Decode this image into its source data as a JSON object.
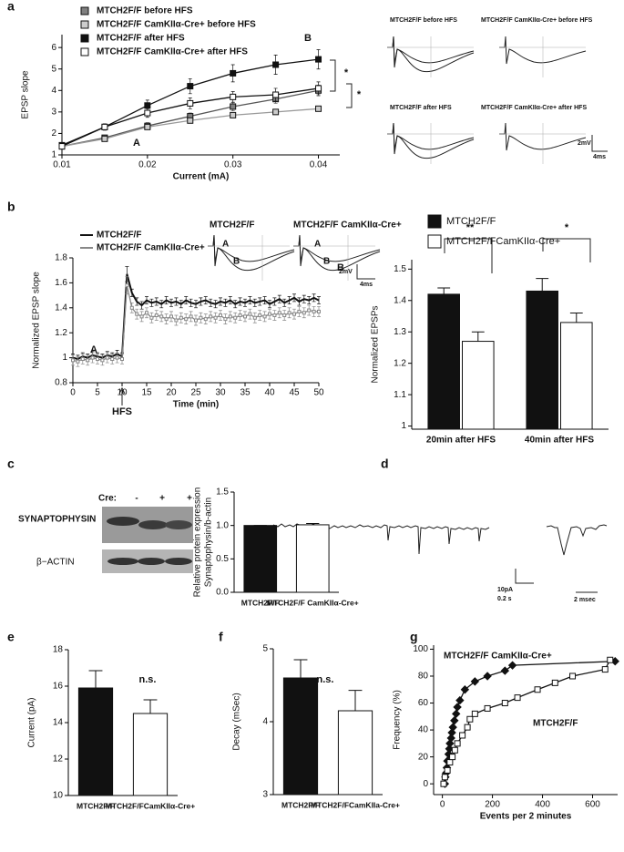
{
  "chart_data": [
    {
      "panel": "a",
      "type": "line",
      "xlabel": "Current (mA)",
      "ylabel": "EPSP slope",
      "x": [
        0.01,
        0.015,
        0.02,
        0.025,
        0.03,
        0.035,
        0.04
      ],
      "xlim": [
        0.01,
        0.0425
      ],
      "xticks": [
        0.01,
        0.02,
        0.03,
        0.04
      ],
      "ylim": [
        1,
        6.6
      ],
      "yticks": [
        1,
        2,
        3,
        4,
        5,
        6
      ],
      "legend": "upper left",
      "series": [
        {
          "name": "MTCH2F/F before HFS",
          "color": "#555555",
          "marker": "square",
          "marker_fill": "#808080",
          "values": [
            1.4,
            1.8,
            2.35,
            2.8,
            3.25,
            3.6,
            4.0
          ],
          "errors": [
            0.05,
            0.1,
            0.15,
            0.15,
            0.2,
            0.2,
            0.25
          ]
        },
        {
          "name": "MTCH2F/F CamKIIα-Cre+ before HFS",
          "color": "#999999",
          "marker": "square",
          "marker_fill": "#cccccc",
          "values": [
            1.4,
            1.75,
            2.3,
            2.6,
            2.85,
            3.0,
            3.15
          ],
          "errors": [
            0.05,
            0.1,
            0.1,
            0.12,
            0.12,
            0.12,
            0.12
          ]
        },
        {
          "name": "MTCH2F/F after HFS",
          "color": "#111111",
          "marker": "square",
          "marker_fill": "#111111",
          "values": [
            1.45,
            2.3,
            3.3,
            4.2,
            4.8,
            5.2,
            5.45
          ],
          "errors": [
            0.05,
            0.15,
            0.25,
            0.35,
            0.4,
            0.45,
            0.45
          ]
        },
        {
          "name": "MTCH2F/F CamKIIα-Cre+ after HFS",
          "color": "#111111",
          "marker": "square",
          "marker_fill": "#ffffff",
          "values": [
            1.4,
            2.3,
            2.95,
            3.4,
            3.7,
            3.8,
            4.1
          ],
          "errors": [
            0.05,
            0.12,
            0.2,
            0.25,
            0.25,
            0.3,
            0.3
          ]
        }
      ],
      "annotations": [
        "A",
        "B",
        "*",
        "*"
      ]
    },
    {
      "panel": "b",
      "type": "line",
      "xlabel": "Time (min)",
      "ylabel": "Normalized EPSP slope",
      "x": [
        0,
        1,
        2,
        3,
        4,
        5,
        6,
        7,
        8,
        9,
        10,
        11,
        12,
        13,
        14,
        15,
        16,
        17,
        18,
        19,
        20,
        21,
        22,
        23,
        24,
        25,
        26,
        27,
        28,
        29,
        30,
        31,
        32,
        33,
        34,
        35,
        36,
        37,
        38,
        39,
        40,
        41,
        42,
        43,
        44,
        45,
        46,
        47,
        48,
        49,
        50
      ],
      "xlim": [
        0,
        50
      ],
      "xticks": [
        0,
        5,
        10,
        15,
        20,
        25,
        30,
        35,
        40,
        45,
        50
      ],
      "ylim": [
        0.8,
        1.8
      ],
      "yticks": [
        0.8,
        1,
        1.2,
        1.4,
        1.6,
        1.8
      ],
      "legend": "upper left",
      "series": [
        {
          "name": "MTCH2F/F",
          "color": "#111111",
          "marker": "none",
          "values": [
            1.0,
            0.99,
            1.01,
            1.0,
            1.02,
            1.01,
            1.0,
            1.02,
            1.01,
            1.03,
            1.01,
            1.67,
            1.52,
            1.45,
            1.42,
            1.46,
            1.44,
            1.45,
            1.43,
            1.46,
            1.44,
            1.45,
            1.43,
            1.46,
            1.44,
            1.43,
            1.45,
            1.46,
            1.44,
            1.43,
            1.45,
            1.44,
            1.46,
            1.43,
            1.45,
            1.44,
            1.46,
            1.44,
            1.45,
            1.46,
            1.43,
            1.45,
            1.47,
            1.44,
            1.46,
            1.48,
            1.45,
            1.47,
            1.46,
            1.48,
            1.46
          ],
          "errors": [
            0.03,
            0.03,
            0.03,
            0.03,
            0.03,
            0.03,
            0.03,
            0.03,
            0.03,
            0.03,
            0.03,
            0.06,
            0.03,
            0.03,
            0.03,
            0.03,
            0.03,
            0.03,
            0.03,
            0.03,
            0.03,
            0.03,
            0.03,
            0.03,
            0.03,
            0.03,
            0.03,
            0.03,
            0.03,
            0.03,
            0.03,
            0.03,
            0.03,
            0.03,
            0.03,
            0.03,
            0.03,
            0.03,
            0.03,
            0.03,
            0.03,
            0.03,
            0.03,
            0.03,
            0.03,
            0.03,
            0.03,
            0.03,
            0.03,
            0.03,
            0.03
          ]
        },
        {
          "name": "MTCH2F/F CamKIIα-Cre+",
          "color": "#888888",
          "marker": "square",
          "marker_fill": "#ffffff",
          "values": [
            0.98,
            0.97,
            0.99,
            0.98,
            1.0,
            0.99,
            0.98,
            1.0,
            0.99,
            1.0,
            0.99,
            1.58,
            1.4,
            1.35,
            1.33,
            1.36,
            1.32,
            1.34,
            1.33,
            1.31,
            1.33,
            1.3,
            1.32,
            1.31,
            1.33,
            1.3,
            1.32,
            1.31,
            1.33,
            1.32,
            1.34,
            1.31,
            1.33,
            1.32,
            1.34,
            1.33,
            1.35,
            1.32,
            1.34,
            1.33,
            1.35,
            1.34,
            1.36,
            1.34,
            1.36,
            1.35,
            1.37,
            1.36,
            1.38,
            1.37,
            1.37
          ],
          "errors": [
            0.04,
            0.04,
            0.04,
            0.04,
            0.04,
            0.04,
            0.04,
            0.04,
            0.04,
            0.04,
            0.04,
            0.07,
            0.04,
            0.04,
            0.04,
            0.04,
            0.04,
            0.04,
            0.04,
            0.04,
            0.04,
            0.04,
            0.04,
            0.04,
            0.04,
            0.04,
            0.04,
            0.04,
            0.04,
            0.04,
            0.04,
            0.04,
            0.04,
            0.04,
            0.04,
            0.04,
            0.04,
            0.04,
            0.04,
            0.04,
            0.04,
            0.04,
            0.04,
            0.04,
            0.04,
            0.04,
            0.04,
            0.04,
            0.04,
            0.04,
            0.04
          ]
        }
      ],
      "annotations": [
        "A",
        "B",
        "HFS"
      ]
    },
    {
      "type": "bar",
      "ylabel": "Normalized EPSPs",
      "categories": [
        "20min after HFS",
        "40min after HFS"
      ],
      "ylim": [
        0.99,
        1.53
      ],
      "yticks": [
        1,
        1.1,
        1.2,
        1.3,
        1.4,
        1.5
      ],
      "legend": "top",
      "series": [
        {
          "name": "MTCH2F/F",
          "color": "#111111",
          "values": [
            1.42,
            1.43
          ],
          "errors": [
            0.02,
            0.04
          ]
        },
        {
          "name": "MTCH2F/FCamKIIα-Cre+",
          "color": "#ffffff",
          "values": [
            1.27,
            1.33
          ],
          "errors": [
            0.03,
            0.03
          ]
        }
      ],
      "annotations": [
        "**",
        "*"
      ]
    },
    {
      "type": "bar",
      "ylabel": [
        "Relative protein expression",
        "Synaptophysin/b-actin"
      ],
      "categories": [
        "MTCH2F/F",
        "MTCH2F/F CamKIIα-Cre+"
      ],
      "values": [
        1.0,
        1.01
      ],
      "errors": [
        0,
        0.02
      ],
      "colors": [
        "#111111",
        "#ffffff"
      ],
      "ylim": [
        0,
        1.5
      ],
      "yticks": [
        {
          "value": 0,
          "label": "0.0"
        },
        {
          "value": 0.5,
          "label": "0.5"
        },
        {
          "value": 1,
          "label": "1.0"
        },
        {
          "value": 1.5,
          "label": "1.5"
        }
      ]
    },
    {
      "panel": "e",
      "type": "bar",
      "ylabel": "Current (pA)",
      "categories": [
        "MTCH2F/F",
        "MTCH2F/FCamKIIα-Cre+"
      ],
      "values": [
        15.9,
        14.5
      ],
      "errors": [
        0.95,
        0.75
      ],
      "colors": [
        "#111111",
        "#ffffff"
      ],
      "ylim": [
        10,
        18
      ],
      "yticks": [
        10,
        12,
        14,
        16,
        18
      ],
      "annotations": [
        "n.s."
      ]
    },
    {
      "panel": "f",
      "type": "bar",
      "ylabel": "Decay (mSec)",
      "categories": [
        "MTCH2F/F",
        "MTCH2F/FCamKIIa-Cre+"
      ],
      "values": [
        4.6,
        4.15
      ],
      "errors": [
        0.25,
        0.28
      ],
      "colors": [
        "#111111",
        "#ffffff"
      ],
      "ylim": [
        3,
        5
      ],
      "yticks": [
        3,
        4,
        5
      ],
      "annotations": [
        "n.s."
      ]
    },
    {
      "panel": "g",
      "type": "scatter",
      "xlabel": "Events per 2 minutes",
      "ylabel": "Frequency (%)",
      "xlim": [
        -35,
        700
      ],
      "xticks": [
        0,
        200,
        400,
        600
      ],
      "ylim": [
        -8,
        103
      ],
      "yticks": [
        0,
        20,
        40,
        60,
        80,
        100
      ],
      "series": [
        {
          "name": "MTCH2F/F CamKIIα-Cre+",
          "color": "#111111",
          "marker": "diamond",
          "marker_fill": "#111111",
          "x": [
            10,
            12,
            15,
            18,
            20,
            25,
            28,
            30,
            35,
            38,
            42,
            48,
            55,
            60,
            70,
            90,
            130,
            180,
            250,
            280,
            690
          ],
          "values": [
            0,
            5,
            8,
            12,
            17,
            22,
            26,
            30,
            34,
            38,
            42,
            47,
            52,
            57,
            62,
            70,
            76,
            80,
            84,
            88,
            91
          ]
        },
        {
          "name": "MTCH2F/F",
          "color": "#111111",
          "marker": "square",
          "marker_fill": "#ffffff",
          "x": [
            5,
            10,
            20,
            30,
            40,
            50,
            60,
            80,
            100,
            110,
            130,
            180,
            250,
            300,
            380,
            450,
            520,
            650,
            670
          ],
          "values": [
            0,
            5,
            10,
            16,
            20,
            25,
            30,
            36,
            42,
            48,
            52,
            56,
            60,
            64,
            70,
            75,
            80,
            85,
            92
          ]
        }
      ]
    }
  ],
  "insets": {
    "a": [
      "MTCH2F/F before HFS",
      "MTCH2F/F CamKIIα-Cre+ before HFS",
      "MTCH2F/F after HFS",
      "MTCH2F/F CamKIIα-Cre+ after HFS",
      "2mV",
      "4ms"
    ],
    "b": [
      "MTCH2F/F",
      "MTCH2F/F CamKIIα-Cre+",
      "A",
      "B",
      "A",
      "B",
      "2mV",
      "4ms"
    ]
  },
  "blot": {
    "panel": "c",
    "cre_label": "Cre:",
    "lanes": [
      "-",
      "+",
      "+"
    ],
    "rows": [
      "SYNAPTOPHYSIN",
      "β−ACTIN"
    ]
  },
  "panel_d": {
    "panel": "d",
    "scale": [
      "10pA",
      "0.2 s",
      "2 msec"
    ]
  }
}
